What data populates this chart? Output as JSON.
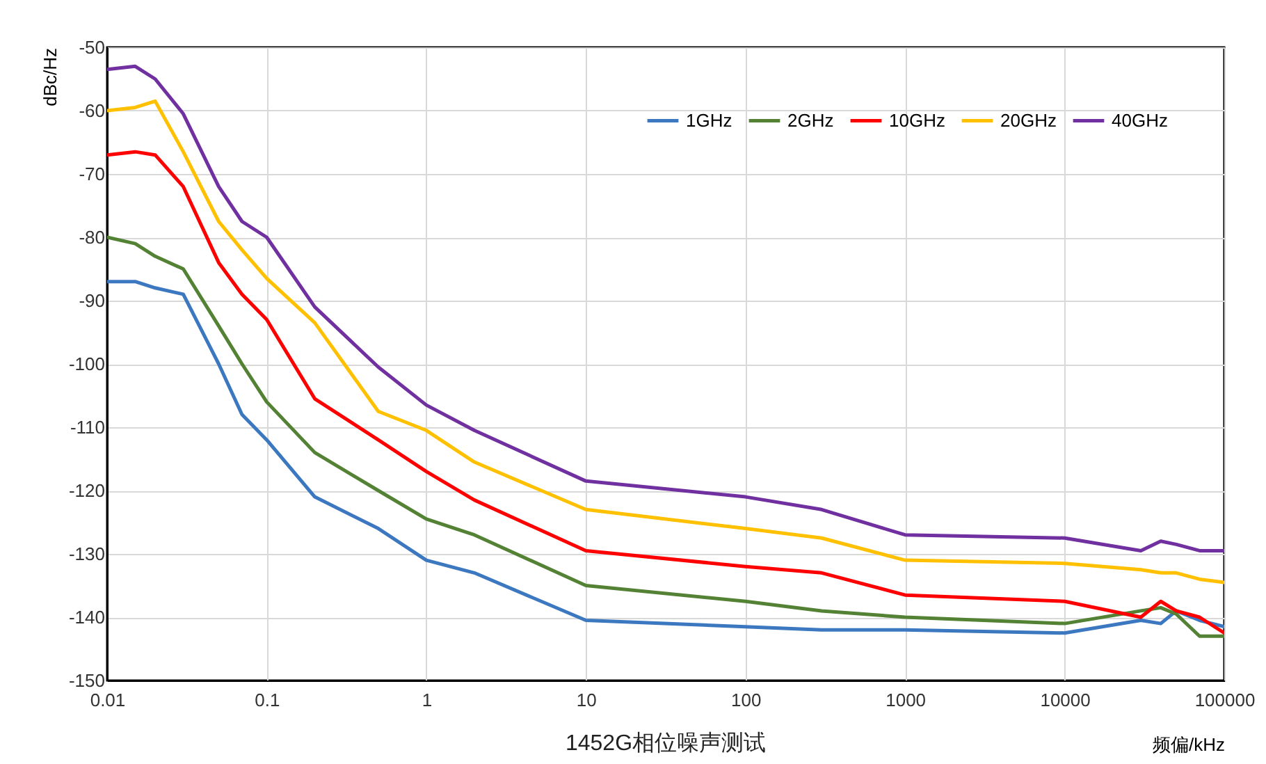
{
  "chart_data": {
    "type": "line",
    "title": "1452G相位噪声测试",
    "xlabel": "频偏/kHz",
    "ylabel": "dBc/Hz",
    "log": "x",
    "grid": true,
    "legend": "top right",
    "line_style": "solid",
    "marker": "none",
    "xlim": [
      0.01,
      100000
    ],
    "xticks": [
      0.01,
      0.1,
      1,
      10,
      100,
      1000,
      10000,
      100000
    ],
    "ylim": [
      -150,
      -50
    ],
    "yticks": [
      -150,
      -140,
      -130,
      -120,
      -110,
      -100,
      -90,
      -80,
      -70,
      -60,
      -50
    ],
    "x": [
      0.01,
      0.015,
      0.02,
      0.03,
      0.05,
      0.07,
      0.1,
      0.2,
      0.5,
      1,
      2,
      10,
      100,
      300,
      1000,
      10000,
      30000,
      40000,
      50000,
      70000,
      100000
    ],
    "series": [
      {
        "name": "1GHz",
        "color": "#3c78c0",
        "values": [
          -87,
          -87,
          -88,
          -89,
          -100,
          -108,
          -112,
          -121,
          -126,
          -131,
          -133,
          -140.5,
          -141.5,
          -142,
          -142,
          -142.5,
          -140.5,
          -141,
          -139,
          -140.5,
          -141.5
        ]
      },
      {
        "name": "2GHz",
        "color": "#548235",
        "values": [
          -80,
          -81,
          -83,
          -85,
          -94,
          -100,
          -106,
          -114,
          -120,
          -124.5,
          -127,
          -135,
          -137.5,
          -139,
          -140,
          -141,
          -139,
          -138.5,
          -139.5,
          -143,
          -143
        ]
      },
      {
        "name": "10GHz",
        "color": "#ff0000",
        "values": [
          -67,
          -66.5,
          -67,
          -72,
          -84,
          -89,
          -93,
          -105.5,
          -112,
          -117,
          -121.5,
          -129.5,
          -132,
          -133,
          -136.5,
          -137.5,
          -140,
          -137.5,
          -139,
          -140,
          -142.5
        ]
      },
      {
        "name": "20GHz",
        "color": "#ffc000",
        "values": [
          -60,
          -59.5,
          -58.5,
          -66.5,
          -77.5,
          -82,
          -86.5,
          -93.5,
          -107.5,
          -110.5,
          -115.5,
          -123,
          -126,
          -127.5,
          -131,
          -131.5,
          -132.5,
          -133,
          -133,
          -134,
          -134.5
        ]
      },
      {
        "name": "40GHz",
        "color": "#7030a0",
        "values": [
          -53.5,
          -53,
          -55,
          -60.5,
          -72,
          -77.5,
          -80,
          -91,
          -100.5,
          -106.5,
          -110.5,
          -118.5,
          -121,
          -123,
          -127,
          -127.5,
          -129.5,
          -128,
          -128.5,
          -129.5,
          -129.5
        ]
      }
    ]
  }
}
